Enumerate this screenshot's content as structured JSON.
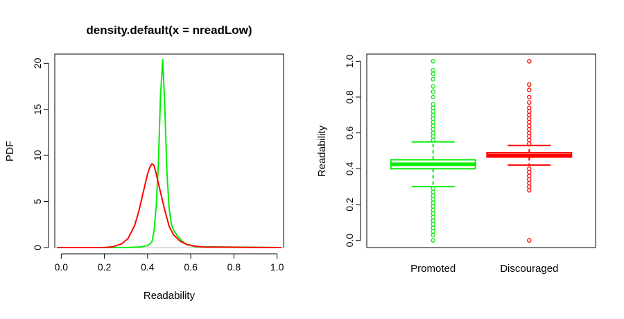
{
  "chart_data": [
    {
      "type": "line",
      "title": "density.default(x = nreadLow)",
      "xlabel": "Readability",
      "ylabel": "PDF",
      "xlim": [
        -0.03,
        1.03
      ],
      "ylim": [
        0,
        21
      ],
      "x_ticks": [
        "0.0",
        "0.2",
        "0.4",
        "0.6",
        "0.8",
        "1.0"
      ],
      "x_tick_values": [
        0,
        0.2,
        0.4,
        0.6,
        0.8,
        1.0
      ],
      "y_ticks": [
        "0",
        "5",
        "10",
        "15",
        "20"
      ],
      "y_tick_values": [
        0,
        5,
        10,
        15,
        20
      ],
      "zero_line": true,
      "series": [
        {
          "color": "#00ee00",
          "x": [
            -0.02,
            0.3,
            0.36,
            0.4,
            0.42,
            0.43,
            0.44,
            0.45,
            0.46,
            0.47,
            0.48,
            0.49,
            0.5,
            0.51,
            0.52,
            0.54,
            0.56,
            0.58,
            0.62,
            1.02
          ],
          "y": [
            0,
            0,
            0.05,
            0.2,
            0.6,
            1.8,
            4.5,
            9.0,
            16.5,
            20.4,
            15.0,
            8.0,
            4.2,
            2.6,
            1.9,
            1.2,
            0.7,
            0.35,
            0.1,
            0
          ]
        },
        {
          "color": "#ff0000",
          "x": [
            -0.02,
            0.2,
            0.24,
            0.28,
            0.31,
            0.34,
            0.36,
            0.38,
            0.4,
            0.41,
            0.42,
            0.43,
            0.44,
            0.46,
            0.48,
            0.5,
            0.52,
            0.55,
            0.58,
            0.62,
            0.66,
            1.02
          ],
          "y": [
            0,
            0,
            0.1,
            0.4,
            1.0,
            2.4,
            4.0,
            6.0,
            8.0,
            8.7,
            9.1,
            8.9,
            8.0,
            6.0,
            4.0,
            2.3,
            1.4,
            0.7,
            0.35,
            0.15,
            0.05,
            0
          ]
        }
      ]
    },
    {
      "type": "boxplot",
      "xlabel": "",
      "ylabel": "Readability",
      "ylim": [
        0,
        1
      ],
      "y_ticks": [
        "0.0",
        "0.2",
        "0.4",
        "0.6",
        "0.8",
        "1.0"
      ],
      "y_tick_values": [
        0,
        0.2,
        0.4,
        0.6,
        0.8,
        1.0
      ],
      "categories": [
        "Promoted",
        "Discouraged"
      ],
      "boxes": [
        {
          "category": "Promoted",
          "color": "#00ee00",
          "whisker_low": 0.3,
          "q1": 0.4,
          "median": 0.425,
          "q3": 0.45,
          "whisker_high": 0.55,
          "outliers": [
            0.0,
            0.03,
            0.05,
            0.07,
            0.09,
            0.11,
            0.13,
            0.15,
            0.17,
            0.19,
            0.21,
            0.23,
            0.25,
            0.27,
            0.29,
            0.56,
            0.58,
            0.6,
            0.62,
            0.64,
            0.66,
            0.68,
            0.7,
            0.72,
            0.74,
            0.76,
            0.8,
            0.83,
            0.86,
            0.9,
            0.93,
            0.95,
            1.0
          ]
        },
        {
          "category": "Discouraged",
          "color": "#ff0000",
          "whisker_low": 0.42,
          "q1": 0.465,
          "median": 0.475,
          "q3": 0.49,
          "whisker_high": 0.53,
          "outliers": [
            0.0,
            0.28,
            0.3,
            0.32,
            0.34,
            0.36,
            0.38,
            0.4,
            0.54,
            0.56,
            0.58,
            0.6,
            0.62,
            0.64,
            0.66,
            0.68,
            0.7,
            0.72,
            0.74,
            0.77,
            0.8,
            0.84,
            0.87,
            1.0
          ]
        }
      ]
    }
  ]
}
